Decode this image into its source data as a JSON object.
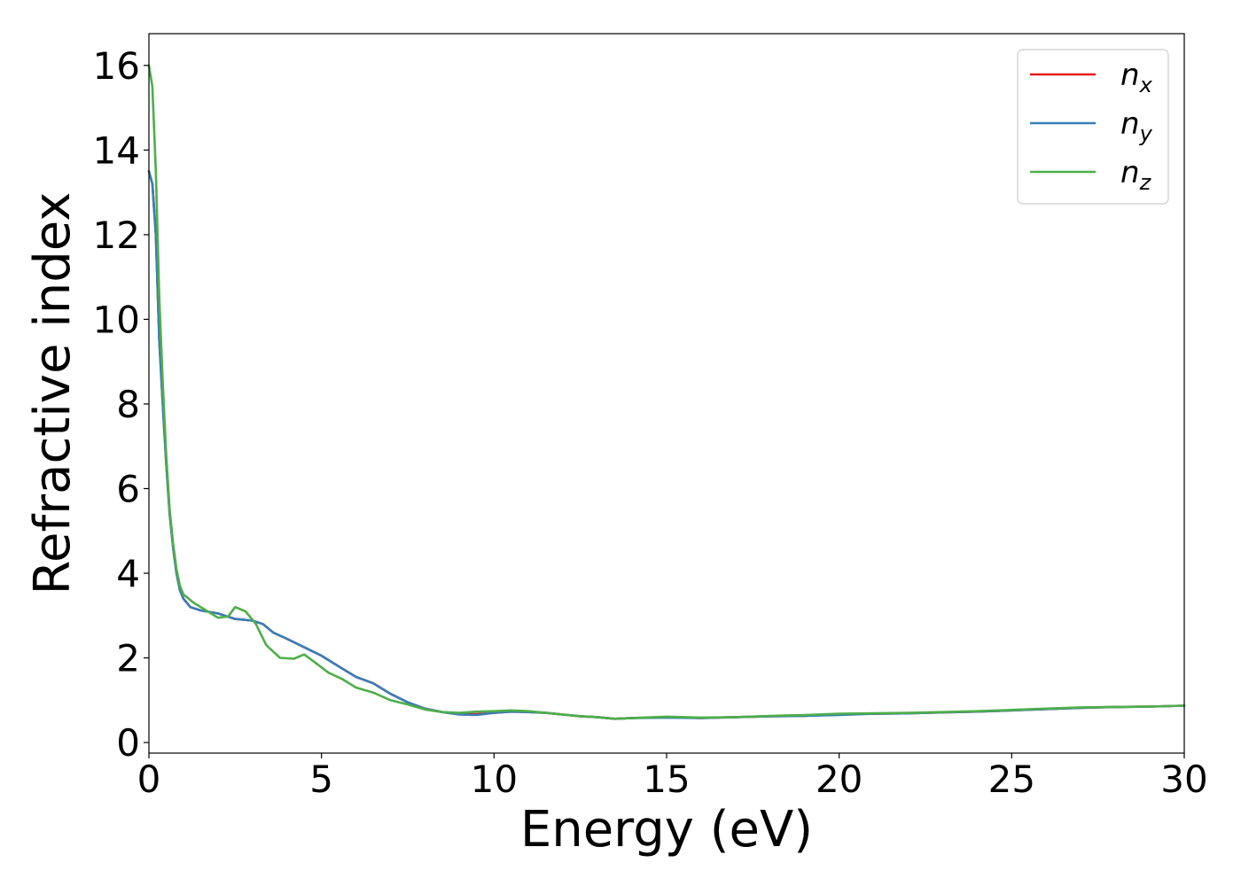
{
  "chart_data": {
    "type": "line",
    "title": "",
    "xlabel": "Energy (eV)",
    "ylabel": "Refractive index",
    "xlim": [
      0,
      30
    ],
    "ylim": [
      -0.25,
      16.75
    ],
    "xticks": [
      0,
      5,
      10,
      15,
      20,
      25,
      30
    ],
    "yticks": [
      0,
      2,
      4,
      6,
      8,
      10,
      12,
      14,
      16
    ],
    "grid": false,
    "legend": {
      "placement": "top-right"
    },
    "series": [
      {
        "name": "n",
        "name_subscript": "x",
        "color": "#e41a1c",
        "points": [
          [
            0,
            13.5
          ],
          [
            0.1,
            13.2
          ],
          [
            0.2,
            12.0
          ],
          [
            0.3,
            9.5
          ],
          [
            0.4,
            8.0
          ],
          [
            0.5,
            6.6
          ],
          [
            0.6,
            5.4
          ],
          [
            0.7,
            4.6
          ],
          [
            0.8,
            4.0
          ],
          [
            0.9,
            3.6
          ],
          [
            1.0,
            3.4
          ],
          [
            1.2,
            3.2
          ],
          [
            1.5,
            3.12
          ],
          [
            2.0,
            3.05
          ],
          [
            2.5,
            2.92
          ],
          [
            3.0,
            2.88
          ],
          [
            3.3,
            2.8
          ],
          [
            3.6,
            2.6
          ],
          [
            4.0,
            2.45
          ],
          [
            4.5,
            2.25
          ],
          [
            5.0,
            2.05
          ],
          [
            5.5,
            1.8
          ],
          [
            6.0,
            1.55
          ],
          [
            6.5,
            1.4
          ],
          [
            7.0,
            1.15
          ],
          [
            7.5,
            0.95
          ],
          [
            8.0,
            0.8
          ],
          [
            8.5,
            0.72
          ],
          [
            9.0,
            0.68
          ],
          [
            9.5,
            0.67
          ],
          [
            10.0,
            0.7
          ],
          [
            10.5,
            0.73
          ],
          [
            11.0,
            0.72
          ],
          [
            11.5,
            0.7
          ],
          [
            12.0,
            0.66
          ],
          [
            12.5,
            0.62
          ],
          [
            13.0,
            0.6
          ],
          [
            13.5,
            0.56
          ],
          [
            14.0,
            0.58
          ],
          [
            15.0,
            0.6
          ],
          [
            16.0,
            0.58
          ],
          [
            17.0,
            0.6
          ],
          [
            18.0,
            0.62
          ],
          [
            19.0,
            0.63
          ],
          [
            20.0,
            0.67
          ],
          [
            21.0,
            0.68
          ],
          [
            22.0,
            0.69
          ],
          [
            23.0,
            0.71
          ],
          [
            24.0,
            0.73
          ],
          [
            25.0,
            0.76
          ],
          [
            26.0,
            0.79
          ],
          [
            27.0,
            0.82
          ],
          [
            28.0,
            0.84
          ],
          [
            29.0,
            0.85
          ],
          [
            30.0,
            0.87
          ]
        ]
      },
      {
        "name": "n",
        "name_subscript": "y",
        "color": "#377eb8",
        "points": [
          [
            0,
            13.5
          ],
          [
            0.1,
            13.2
          ],
          [
            0.2,
            12.0
          ],
          [
            0.3,
            9.5
          ],
          [
            0.4,
            8.0
          ],
          [
            0.5,
            6.6
          ],
          [
            0.6,
            5.4
          ],
          [
            0.7,
            4.6
          ],
          [
            0.8,
            4.0
          ],
          [
            0.9,
            3.6
          ],
          [
            1.0,
            3.4
          ],
          [
            1.2,
            3.2
          ],
          [
            1.5,
            3.12
          ],
          [
            2.0,
            3.05
          ],
          [
            2.5,
            2.92
          ],
          [
            3.0,
            2.88
          ],
          [
            3.3,
            2.8
          ],
          [
            3.6,
            2.6
          ],
          [
            4.0,
            2.45
          ],
          [
            4.5,
            2.25
          ],
          [
            5.0,
            2.05
          ],
          [
            5.5,
            1.8
          ],
          [
            6.0,
            1.55
          ],
          [
            6.5,
            1.4
          ],
          [
            7.0,
            1.15
          ],
          [
            7.5,
            0.95
          ],
          [
            8.0,
            0.8
          ],
          [
            8.5,
            0.72
          ],
          [
            9.0,
            0.66
          ],
          [
            9.5,
            0.65
          ],
          [
            10.0,
            0.7
          ],
          [
            10.5,
            0.73
          ],
          [
            11.0,
            0.72
          ],
          [
            11.5,
            0.7
          ],
          [
            12.0,
            0.66
          ],
          [
            12.5,
            0.62
          ],
          [
            13.0,
            0.6
          ],
          [
            13.5,
            0.56
          ],
          [
            14.0,
            0.58
          ],
          [
            15.0,
            0.59
          ],
          [
            16.0,
            0.58
          ],
          [
            17.0,
            0.6
          ],
          [
            18.0,
            0.62
          ],
          [
            19.0,
            0.63
          ],
          [
            20.0,
            0.65
          ],
          [
            21.0,
            0.68
          ],
          [
            22.0,
            0.69
          ],
          [
            23.0,
            0.71
          ],
          [
            24.0,
            0.73
          ],
          [
            25.0,
            0.76
          ],
          [
            26.0,
            0.79
          ],
          [
            27.0,
            0.82
          ],
          [
            28.0,
            0.84
          ],
          [
            29.0,
            0.85
          ],
          [
            30.0,
            0.87
          ]
        ]
      },
      {
        "name": "n",
        "name_subscript": "z",
        "color": "#4daf4a",
        "points": [
          [
            0,
            16.0
          ],
          [
            0.1,
            15.5
          ],
          [
            0.2,
            13.5
          ],
          [
            0.3,
            10.5
          ],
          [
            0.4,
            8.5
          ],
          [
            0.5,
            6.8
          ],
          [
            0.6,
            5.5
          ],
          [
            0.7,
            4.7
          ],
          [
            0.8,
            4.1
          ],
          [
            0.9,
            3.7
          ],
          [
            1.0,
            3.5
          ],
          [
            1.3,
            3.3
          ],
          [
            1.6,
            3.15
          ],
          [
            2.0,
            2.95
          ],
          [
            2.3,
            2.98
          ],
          [
            2.5,
            3.2
          ],
          [
            2.8,
            3.1
          ],
          [
            3.1,
            2.8
          ],
          [
            3.4,
            2.3
          ],
          [
            3.8,
            2.0
          ],
          [
            4.2,
            1.98
          ],
          [
            4.5,
            2.08
          ],
          [
            4.8,
            1.9
          ],
          [
            5.2,
            1.65
          ],
          [
            5.6,
            1.5
          ],
          [
            6.0,
            1.3
          ],
          [
            6.5,
            1.18
          ],
          [
            7.0,
            1.0
          ],
          [
            7.5,
            0.9
          ],
          [
            8.0,
            0.78
          ],
          [
            8.5,
            0.72
          ],
          [
            9.0,
            0.7
          ],
          [
            9.5,
            0.73
          ],
          [
            10.0,
            0.74
          ],
          [
            10.5,
            0.76
          ],
          [
            11.0,
            0.74
          ],
          [
            11.5,
            0.7
          ],
          [
            12.0,
            0.66
          ],
          [
            12.5,
            0.62
          ],
          [
            13.0,
            0.6
          ],
          [
            13.5,
            0.56
          ],
          [
            14.0,
            0.58
          ],
          [
            15.0,
            0.61
          ],
          [
            16.0,
            0.59
          ],
          [
            17.0,
            0.6
          ],
          [
            18.0,
            0.63
          ],
          [
            19.0,
            0.65
          ],
          [
            20.0,
            0.68
          ],
          [
            21.0,
            0.69
          ],
          [
            22.0,
            0.7
          ],
          [
            23.0,
            0.72
          ],
          [
            24.0,
            0.74
          ],
          [
            25.0,
            0.77
          ],
          [
            26.0,
            0.8
          ],
          [
            27.0,
            0.83
          ],
          [
            28.0,
            0.84
          ],
          [
            29.0,
            0.85
          ],
          [
            30.0,
            0.87
          ]
        ]
      }
    ]
  }
}
